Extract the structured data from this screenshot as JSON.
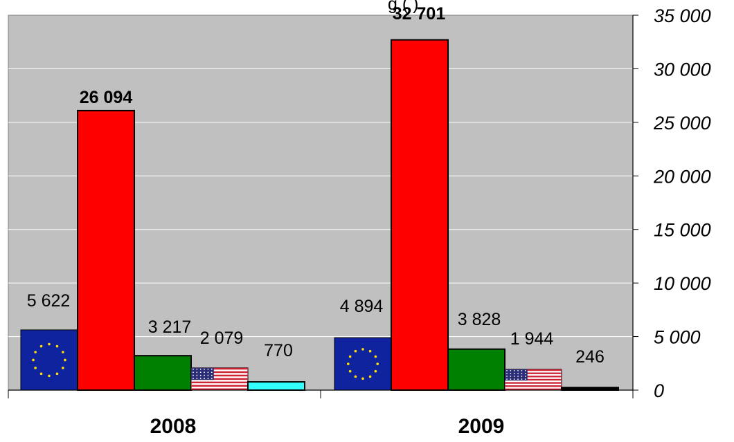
{
  "top_fragment": "g          (          )",
  "chart_data": {
    "type": "bar",
    "categories": [
      "2008",
      "2009"
    ],
    "ylim": [
      0,
      35000
    ],
    "yticks": [
      0,
      5000,
      10000,
      15000,
      20000,
      25000,
      30000,
      35000
    ],
    "ytick_labels": [
      "0",
      "5 000",
      "10 000",
      "15 000",
      "20 000",
      "25 000",
      "30 000",
      "35 000"
    ],
    "y_axis_position": "right",
    "grid": true,
    "legend": "none",
    "background_color": "#c0c0c0",
    "series": [
      {
        "fill": "eu-flag",
        "values": [
          5622,
          4894
        ],
        "labels": [
          "5 622",
          "4 894"
        ],
        "bold": false
      },
      {
        "fill": "#ff0000",
        "values": [
          26094,
          32701
        ],
        "labels": [
          "26 094",
          "32 701"
        ],
        "bold": true
      },
      {
        "fill": "#008000",
        "values": [
          3217,
          3828
        ],
        "labels": [
          "3 217",
          "3 828"
        ],
        "bold": false
      },
      {
        "fill": "us-flag",
        "values": [
          2079,
          1944
        ],
        "labels": [
          "2 079",
          "1 944"
        ],
        "bold": false
      },
      {
        "fill_2008": "#33ffff",
        "fill_2009": "#000000",
        "values": [
          770,
          246
        ],
        "labels": [
          "770",
          "246"
        ],
        "bold": false
      }
    ]
  }
}
